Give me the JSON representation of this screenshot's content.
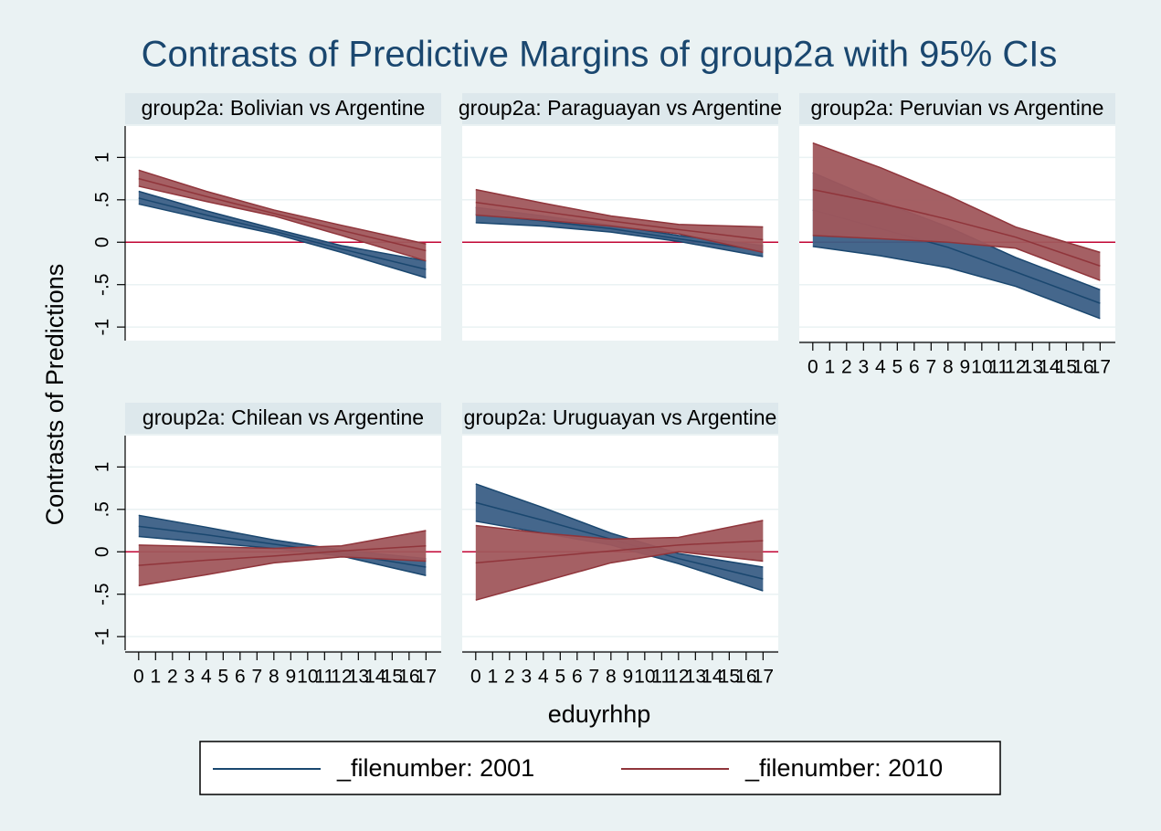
{
  "chart_data": {
    "type": "line",
    "title": "Contrasts of Predictive Margins of group2a with 95% CIs",
    "y_label": "Contrasts of Predictions",
    "x_label": "eduyrhhp",
    "x": [
      0,
      4,
      8,
      12,
      17
    ],
    "xlim": [
      -0.8,
      17.9
    ],
    "ylim": [
      -1.16,
      1.37
    ],
    "xticks": [
      0,
      1,
      2,
      3,
      4,
      5,
      6,
      7,
      8,
      9,
      10,
      11,
      12,
      13,
      14,
      15,
      16,
      17
    ],
    "yticks": [
      -1,
      {
        "value": -0.5,
        "label": "-.5"
      },
      0,
      {
        "value": 0.5,
        "label": ".5"
      },
      1
    ],
    "series": [
      {
        "name": "_filenumber: 2001",
        "color": "#3b5f86",
        "line_color": "#1a476f"
      },
      {
        "name": "_filenumber: 2010",
        "color": "#a0575c",
        "line_color": "#90353b"
      }
    ],
    "panels": [
      {
        "title": "group2a: Bolivian vs Argentine",
        "series": [
          {
            "values": [
              0.52,
              0.32,
              0.13,
              -0.08,
              -0.32
            ],
            "lower": [
              0.45,
              0.27,
              0.1,
              -0.12,
              -0.42
            ],
            "upper": [
              0.6,
              0.37,
              0.16,
              -0.04,
              -0.22
            ]
          },
          {
            "values": [
              0.75,
              0.54,
              0.34,
              0.14,
              -0.1
            ],
            "lower": [
              0.66,
              0.48,
              0.31,
              0.08,
              -0.22
            ],
            "upper": [
              0.85,
              0.6,
              0.38,
              0.2,
              -0.02
            ]
          }
        ]
      },
      {
        "title": "group2a: Paraguayan vs Argentine",
        "series": [
          {
            "values": [
              0.33,
              0.25,
              0.16,
              0.04,
              -0.1
            ],
            "lower": [
              0.23,
              0.19,
              0.12,
              0.01,
              -0.17
            ],
            "upper": [
              0.41,
              0.31,
              0.2,
              0.08,
              -0.04
            ]
          },
          {
            "values": [
              0.47,
              0.36,
              0.25,
              0.15,
              0.03
            ],
            "lower": [
              0.32,
              0.26,
              0.19,
              0.1,
              -0.12
            ],
            "upper": [
              0.62,
              0.46,
              0.31,
              0.21,
              0.18
            ]
          }
        ]
      },
      {
        "title": "group2a: Peruvian vs Argentine",
        "series": [
          {
            "values": [
              0.38,
              0.16,
              -0.06,
              -0.35,
              -0.72
            ],
            "lower": [
              -0.05,
              -0.16,
              -0.3,
              -0.52,
              -0.9
            ],
            "upper": [
              0.82,
              0.48,
              0.18,
              -0.18,
              -0.56
            ]
          },
          {
            "values": [
              0.62,
              0.46,
              0.27,
              0.06,
              -0.28
            ],
            "lower": [
              0.08,
              0.04,
              0.0,
              -0.07,
              -0.45
            ],
            "upper": [
              1.17,
              0.88,
              0.55,
              0.18,
              -0.12
            ]
          }
        ]
      },
      {
        "title": "group2a: Chilean vs Argentine",
        "series": [
          {
            "values": [
              0.3,
              0.2,
              0.09,
              -0.02,
              -0.18
            ],
            "lower": [
              0.18,
              0.11,
              0.04,
              -0.05,
              -0.28
            ],
            "upper": [
              0.43,
              0.29,
              0.14,
              0.02,
              -0.08
            ]
          },
          {
            "values": [
              -0.16,
              -0.1,
              -0.05,
              0.01,
              0.07
            ],
            "lower": [
              -0.4,
              -0.27,
              -0.13,
              -0.06,
              -0.11
            ],
            "upper": [
              0.08,
              0.06,
              0.04,
              0.07,
              0.25
            ]
          }
        ]
      },
      {
        "title": "group2a: Uruguayan vs Argentine",
        "series": [
          {
            "values": [
              0.58,
              0.37,
              0.15,
              -0.08,
              -0.32
            ],
            "lower": [
              0.36,
              0.22,
              0.08,
              -0.14,
              -0.46
            ],
            "upper": [
              0.8,
              0.52,
              0.22,
              -0.02,
              -0.18
            ]
          },
          {
            "values": [
              -0.13,
              -0.06,
              0.01,
              0.08,
              0.13
            ],
            "lower": [
              -0.57,
              -0.35,
              -0.13,
              0.0,
              -0.11
            ],
            "upper": [
              0.31,
              0.22,
              0.15,
              0.17,
              0.37
            ]
          }
        ]
      }
    ]
  }
}
